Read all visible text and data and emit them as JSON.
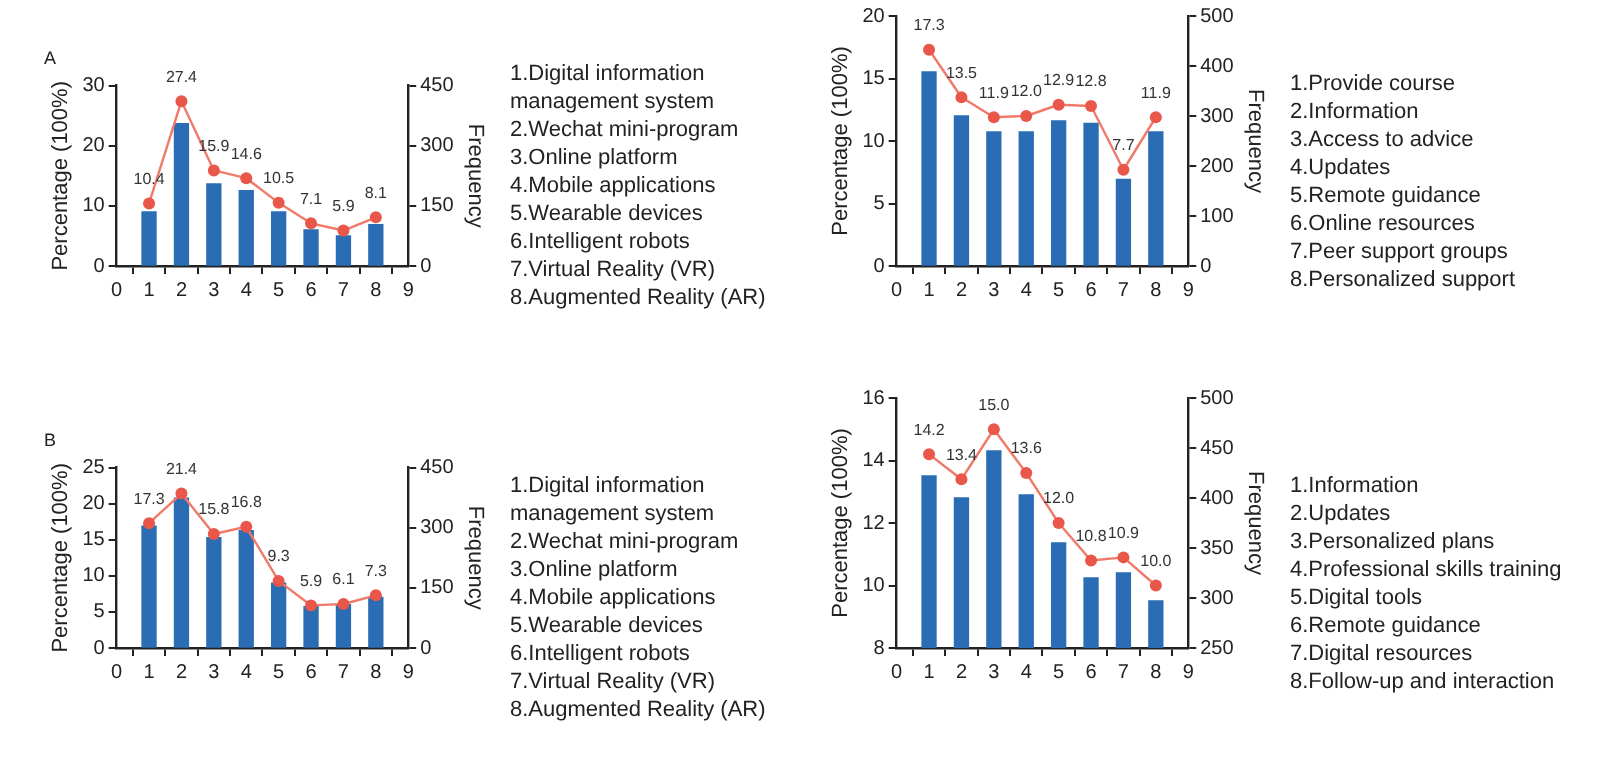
{
  "chart_data": [
    {
      "type": "bar",
      "title": "A",
      "ylabel": "Percentage (100%)",
      "y2label": "Frequency",
      "x": [
        1,
        2,
        3,
        4,
        5,
        6,
        7,
        8
      ],
      "xlim": [
        0,
        9
      ],
      "xticks": [
        0,
        1,
        2,
        3,
        4,
        5,
        6,
        7,
        8,
        9
      ],
      "ylim": [
        0,
        30
      ],
      "yticks": [
        0,
        10,
        20,
        30
      ],
      "y2lim": [
        0,
        450
      ],
      "y2ticks": [
        0,
        150,
        300,
        450
      ],
      "grid": false,
      "legend": false,
      "marker": "circle",
      "annotations": [
        "1.Digital information management system",
        "2.Wechat mini-program",
        "3.Online platform",
        "4.Mobile applications",
        "5.Wearable devices",
        "6.Intelligent robots",
        "7.Virtual Reality (VR)",
        "8.Augmented Reality (AR)"
      ],
      "series": [
        {
          "axis": "y2",
          "color": "#2a6db5",
          "values": [
            135,
            355,
            205,
            188,
            135,
            90,
            75,
            103
          ]
        },
        {
          "type": "line",
          "axis": "y",
          "color": "#f07a6a",
          "values": [
            10.4,
            27.4,
            15.9,
            14.6,
            10.5,
            7.1,
            5.9,
            8.1
          ],
          "value_labels": [
            "10.4",
            "27.4",
            "15.9",
            "14.6",
            "10.5",
            "7.1",
            "5.9",
            "8.1"
          ]
        }
      ]
    },
    {
      "type": "bar",
      "ylabel": "Percentage (100%)",
      "y2label": "Frequency",
      "x": [
        1,
        2,
        3,
        4,
        5,
        6,
        7,
        8
      ],
      "xlim": [
        0,
        9
      ],
      "xticks": [
        0,
        1,
        2,
        3,
        4,
        5,
        6,
        7,
        8,
        9
      ],
      "ylim": [
        0,
        20
      ],
      "yticks": [
        0,
        5,
        10,
        15,
        20
      ],
      "y2lim": [
        0,
        500
      ],
      "y2ticks": [
        0,
        100,
        200,
        300,
        400,
        500
      ],
      "grid": false,
      "legend": false,
      "marker": "circle",
      "annotations": [
        "1.Provide course",
        "2.Information",
        "3.Access to advice",
        "4.Updates",
        "5.Remote guidance",
        "6.Online resources",
        "7.Peer support groups",
        "8.Personalized support"
      ],
      "series": [
        {
          "axis": "y2",
          "color": "#2a6db5",
          "values": [
            388,
            300,
            268,
            268,
            290,
            285,
            173,
            268
          ]
        },
        {
          "type": "line",
          "axis": "y",
          "color": "#f07a6a",
          "values": [
            17.3,
            13.5,
            11.9,
            12.0,
            12.9,
            12.8,
            7.7,
            11.9
          ],
          "value_labels": [
            "17.3",
            "13.5",
            "11.9",
            "12.0",
            "12.9",
            "12.8",
            "7.7",
            "11.9"
          ]
        }
      ]
    },
    {
      "type": "bar",
      "title": "B",
      "ylabel": "Percentage (100%)",
      "y2label": "Frequency",
      "x": [
        1,
        2,
        3,
        4,
        5,
        6,
        7,
        8
      ],
      "xlim": [
        0,
        9
      ],
      "xticks": [
        0,
        1,
        2,
        3,
        4,
        5,
        6,
        7,
        8,
        9
      ],
      "ylim": [
        0,
        25
      ],
      "yticks": [
        0,
        5,
        10,
        15,
        20,
        25
      ],
      "y2lim": [
        0,
        450
      ],
      "y2ticks": [
        0,
        150,
        300,
        450
      ],
      "grid": false,
      "legend": false,
      "marker": "circle",
      "annotations": [
        "1.Digital information management system",
        "2.Wechat mini-program",
        "3.Online platform",
        "4.Mobile applications",
        "5.Wearable devices",
        "6.Intelligent robots",
        "7.Virtual Reality (VR)",
        "8.Augmented Reality (AR)"
      ],
      "series": [
        {
          "axis": "y2",
          "color": "#2a6db5",
          "values": [
            304,
            374,
            275,
            293,
            162,
            103,
            108,
            126
          ]
        },
        {
          "type": "line",
          "axis": "y",
          "color": "#f07a6a",
          "values": [
            17.3,
            21.4,
            15.8,
            16.8,
            9.3,
            5.9,
            6.1,
            7.3
          ],
          "value_labels": [
            "17.3",
            "21.4",
            "15.8",
            "16.8",
            "9.3",
            "5.9",
            "6.1",
            "7.3"
          ]
        }
      ]
    },
    {
      "type": "bar",
      "ylabel": "Percentage (100%)",
      "y2label": "Frequency",
      "x": [
        1,
        2,
        3,
        4,
        5,
        6,
        7,
        8
      ],
      "xlim": [
        0,
        9
      ],
      "xticks": [
        0,
        1,
        2,
        3,
        4,
        5,
        6,
        7,
        8,
        9
      ],
      "ylim": [
        8,
        16
      ],
      "yticks": [
        8,
        10,
        12,
        14,
        16
      ],
      "y2lim": [
        250,
        500
      ],
      "y2ticks": [
        250,
        300,
        350,
        400,
        450,
        500
      ],
      "grid": false,
      "legend": false,
      "marker": "circle",
      "annotations": [
        "1.Information",
        "2.Updates",
        "3.Personalized plans",
        "4.Professional skills training",
        "5.Digital tools",
        "6.Remote guidance",
        "7.Digital resources",
        "8.Follow-up and interaction"
      ],
      "series": [
        {
          "axis": "y2",
          "color": "#2a6db5",
          "values": [
            422,
            400,
            447,
            403,
            355,
            320,
            325,
            297
          ]
        },
        {
          "type": "line",
          "axis": "y",
          "color": "#f07a6a",
          "values": [
            14.2,
            13.4,
            15.0,
            13.6,
            12.0,
            10.8,
            10.9,
            10.0
          ],
          "value_labels": [
            "14.2",
            "13.4",
            "15.0",
            "13.6",
            "12.0",
            "10.8",
            "10.9",
            "10.0"
          ]
        }
      ]
    }
  ]
}
